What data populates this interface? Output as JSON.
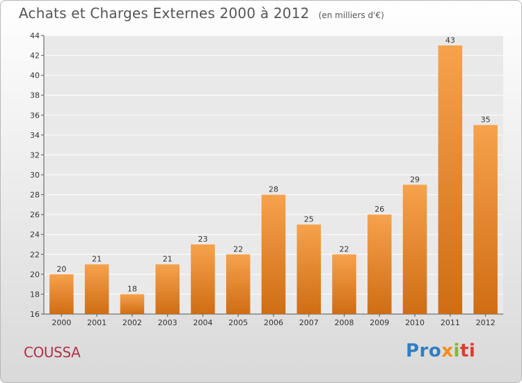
{
  "chart_data": {
    "type": "bar",
    "title": "Achats et Charges Externes 2000 à 2012",
    "subtitle": "(en milliers d'€)",
    "categories": [
      "2000",
      "2001",
      "2002",
      "2003",
      "2004",
      "2005",
      "2006",
      "2007",
      "2008",
      "2009",
      "2010",
      "2011",
      "2012"
    ],
    "values": [
      20,
      21,
      18,
      21,
      23,
      22,
      28,
      25,
      22,
      26,
      29,
      43,
      35
    ],
    "ylim": [
      16,
      44
    ],
    "yticks": [
      16,
      18,
      20,
      22,
      24,
      26,
      28,
      30,
      32,
      34,
      36,
      38,
      40,
      42,
      44
    ],
    "grid": true,
    "bar_color_top": "#f6a24c",
    "bar_color_bottom": "#cf6d14"
  },
  "place_name": "COUSSA",
  "brand": {
    "parts": [
      "Pro",
      "x",
      "i",
      "ti"
    ]
  }
}
